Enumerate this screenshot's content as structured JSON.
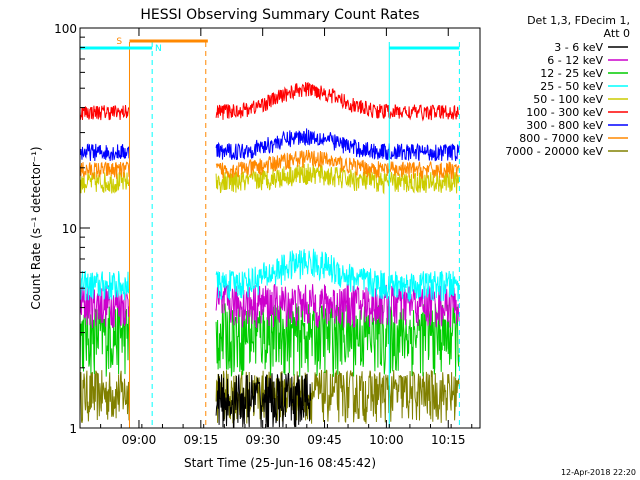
{
  "chart_data": {
    "type": "line",
    "title": "HESSI Observing Summary Count Rates",
    "xlabel": "Start Time (25-Jun-16 08:45:42)",
    "ylabel": "Count Rate (s⁻¹ detector⁻¹)",
    "yscale": "log",
    "ylim": [
      1,
      100
    ],
    "xlim_minutes": [
      0,
      97
    ],
    "x_ticks": [
      "09:00",
      "09:15",
      "09:30",
      "09:45",
      "10:00",
      "10:15"
    ],
    "x_tick_minutes": [
      14.3,
      29.3,
      44.3,
      59.3,
      74.3,
      89.3
    ],
    "y_ticks": [
      "1",
      "10",
      "100"
    ],
    "y_tick_values": [
      1,
      10,
      100
    ],
    "legend_header": [
      "Det 1,3, FDecim 1,",
      "Att 0"
    ],
    "series": [
      {
        "name": "3 - 6 keV",
        "color": "#000000"
      },
      {
        "name": "6 - 12 keV",
        "color": "#cc00cc"
      },
      {
        "name": "12 - 25 keV",
        "color": "#00cc00"
      },
      {
        "name": "25 - 50 keV",
        "color": "#00ffff"
      },
      {
        "name": "50 - 100 keV",
        "color": "#cccc00"
      },
      {
        "name": "100 - 300 keV",
        "color": "#ff0000"
      },
      {
        "name": "300 - 800 keV",
        "color": "#0000ff"
      },
      {
        "name": "800 - 7000 keV",
        "color": "#ff8800"
      },
      {
        "name": "7000 - 20000 keV",
        "color": "#808000"
      }
    ],
    "flags": [
      {
        "label": "S",
        "color": "#ff8800",
        "start_min": 12,
        "end_min": 31
      },
      {
        "label": "N",
        "color": "#00ffff",
        "segments": [
          [
            0,
            17.5
          ],
          [
            75,
            92
          ]
        ]
      }
    ],
    "vertical_markers": [
      {
        "minute": 12.0,
        "color": "#ff8800",
        "style": "solid"
      },
      {
        "minute": 17.5,
        "color": "#00ffff",
        "style": "dashed"
      },
      {
        "minute": 30.5,
        "color": "#ff8800",
        "style": "dashed"
      },
      {
        "minute": 75.0,
        "color": "#00ffff",
        "style": "solid"
      },
      {
        "minute": 92.0,
        "color": "#00ffff",
        "style": "dashed"
      }
    ],
    "data_gap_minutes": [
      12,
      33
    ],
    "footer_date": "12-Apr-2018 22:20"
  }
}
